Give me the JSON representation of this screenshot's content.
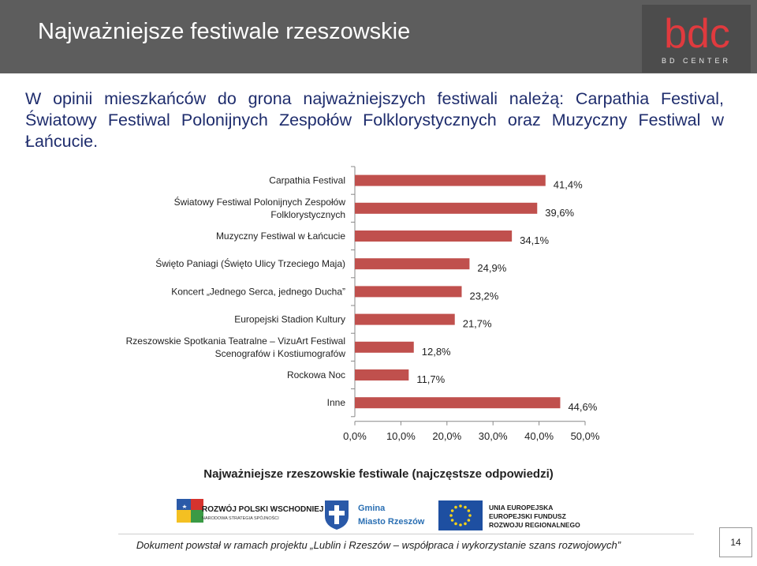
{
  "header": {
    "title": "Najważniejsze festiwale rzeszowskie",
    "logo_letters": "bdc",
    "logo_sub": "BD CENTER"
  },
  "intro": "W opinii mieszkańców do grona najważniejszych festiwali należą: Carpathia Festival, Światowy Festiwal Polonijnych Zespołów Folklorystycznych oraz Muzyczny Festiwal w Łańcucie.",
  "chart_data": {
    "type": "bar",
    "orientation": "horizontal",
    "categories": [
      [
        "Carpathia Festival"
      ],
      [
        "Światowy Festiwal Polonijnych Zespołów",
        "Folklorystycznych"
      ],
      [
        "Muzyczny Festiwal w Łańcucie"
      ],
      [
        "Święto Paniagi (Święto Ulicy Trzeciego Maja)"
      ],
      [
        "Koncert „Jednego Serca, jednego Ducha”"
      ],
      [
        "Europejski Stadion Kultury"
      ],
      [
        "Rzeszowskie Spotkania Teatralne – VizuArt Festiwal",
        "Scenografów i Kostiumografów"
      ],
      [
        "Rockowa Noc"
      ],
      [
        "Inne"
      ]
    ],
    "values": [
      41.4,
      39.6,
      34.1,
      24.9,
      23.2,
      21.7,
      12.8,
      11.7,
      44.6
    ],
    "value_labels": [
      "41,4%",
      "39,6%",
      "34,1%",
      "24,9%",
      "23,2%",
      "21,7%",
      "12,8%",
      "11,7%",
      "44,6%"
    ],
    "xlim": [
      0,
      50
    ],
    "x_ticks": [
      "0,0%",
      "10,0%",
      "20,0%",
      "30,0%",
      "40,0%",
      "50,0%"
    ],
    "grid": false,
    "bar_color": "#c0504d",
    "title": "Najważniejsze rzeszowskie festiwale (najczęstsze odpowiedzi)"
  },
  "logos": {
    "rpw_line1": "ROZWÓJ POLSKI WSCHODNIEJ",
    "rpw_line2": "NARODOWA STRATEGIA SPÓJNOŚCI",
    "gmina_line1": "Gmina",
    "gmina_line2": "Miasto Rzeszów",
    "eu_line1": "UNIA EUROPEJSKA",
    "eu_line2": "EUROPEJSKI FUNDUSZ",
    "eu_line3": "ROZWOJU REGIONALNEGO"
  },
  "footer": {
    "text": "Dokument powstał w ramach projektu „Lublin i Rzeszów – współpraca i wykorzystanie szans rozwojowych”",
    "page": "14"
  },
  "colors": {
    "header_bg": "#5d5d5d",
    "logo_red": "#e03a3e",
    "intro_text": "#1f2d6d",
    "bar": "#c0504d"
  }
}
